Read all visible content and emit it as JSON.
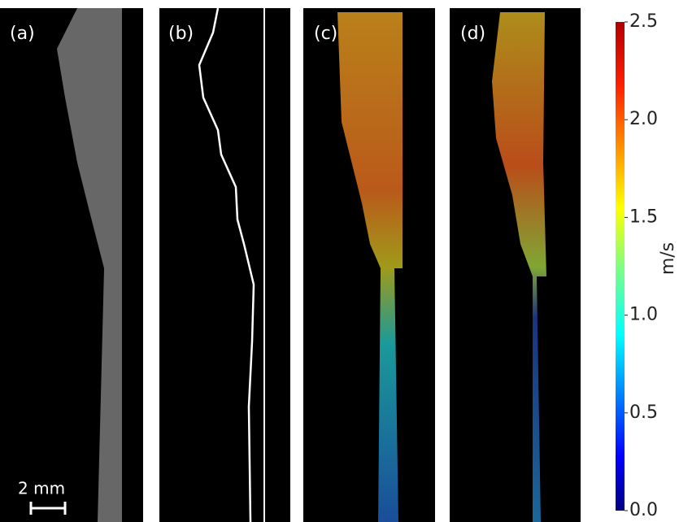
{
  "panels": [
    {
      "label": "(a)"
    },
    {
      "label": "(b)"
    },
    {
      "label": "(c)"
    },
    {
      "label": "(d)"
    }
  ],
  "scale_bar": {
    "label": "2 mm"
  },
  "colorbar": {
    "label": "m/s",
    "range": [
      0,
      2.5
    ],
    "ticks": [
      {
        "value": 0,
        "label": "0.0"
      },
      {
        "value": 0.5,
        "label": "0.5"
      },
      {
        "value": 1,
        "label": "1.0"
      },
      {
        "value": 1.5,
        "label": "1.5"
      },
      {
        "value": 2,
        "label": "2.0"
      },
      {
        "value": 2.5,
        "label": "2.5"
      }
    ]
  }
}
